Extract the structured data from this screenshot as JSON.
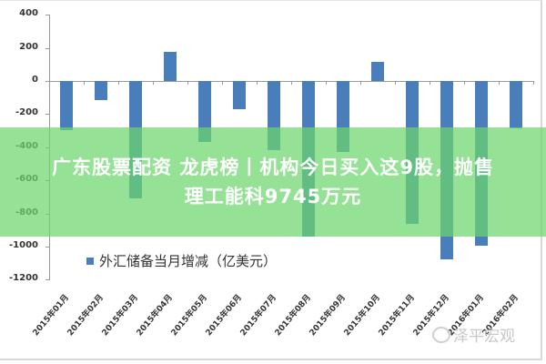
{
  "chart_data": {
    "type": "bar",
    "title": "",
    "legend": [
      "外汇储备当月增减（亿美元）"
    ],
    "legend_position": "inside-bottom",
    "xlabel": "",
    "ylabel": "",
    "ylim": [
      -1200,
      400
    ],
    "yticks": [
      400,
      200,
      0,
      -200,
      -400,
      -600,
      -800,
      -1000,
      -1200
    ],
    "grid": false,
    "categories": [
      "2015年01月",
      "2015年02月",
      "2015年03月",
      "2015年04月",
      "2015年05月",
      "2015年06月",
      "2015年07月",
      "2015年08月",
      "2015年09月",
      "2015年10月",
      "2015年11月",
      "2015年12月",
      "2016年01月",
      "2016年02月"
    ],
    "series": [
      {
        "name": "外汇储备当月增减（亿美元）",
        "color": "#4a7ebb",
        "values": [
          -294,
          -115,
          -710,
          175,
          -367,
          -170,
          -419,
          -939,
          -430,
          114,
          -865,
          -1079,
          -995,
          -285
        ]
      }
    ]
  },
  "yticks_labels": [
    "400",
    "200",
    "0",
    "-200",
    "-400",
    "-600",
    "-800",
    "-1000",
    "-1200"
  ],
  "legend": {
    "label": "外汇储备当月增减（亿美元）"
  },
  "banner": {
    "line1": "广东股票配资 龙虎榜丨机构今日买入这9股，抛售",
    "line2": "理工能科9745万元"
  },
  "watermark": {
    "text": "泽平宏观"
  },
  "colors": {
    "bar": "#4a7ebb",
    "banner": "#6cd66c"
  }
}
